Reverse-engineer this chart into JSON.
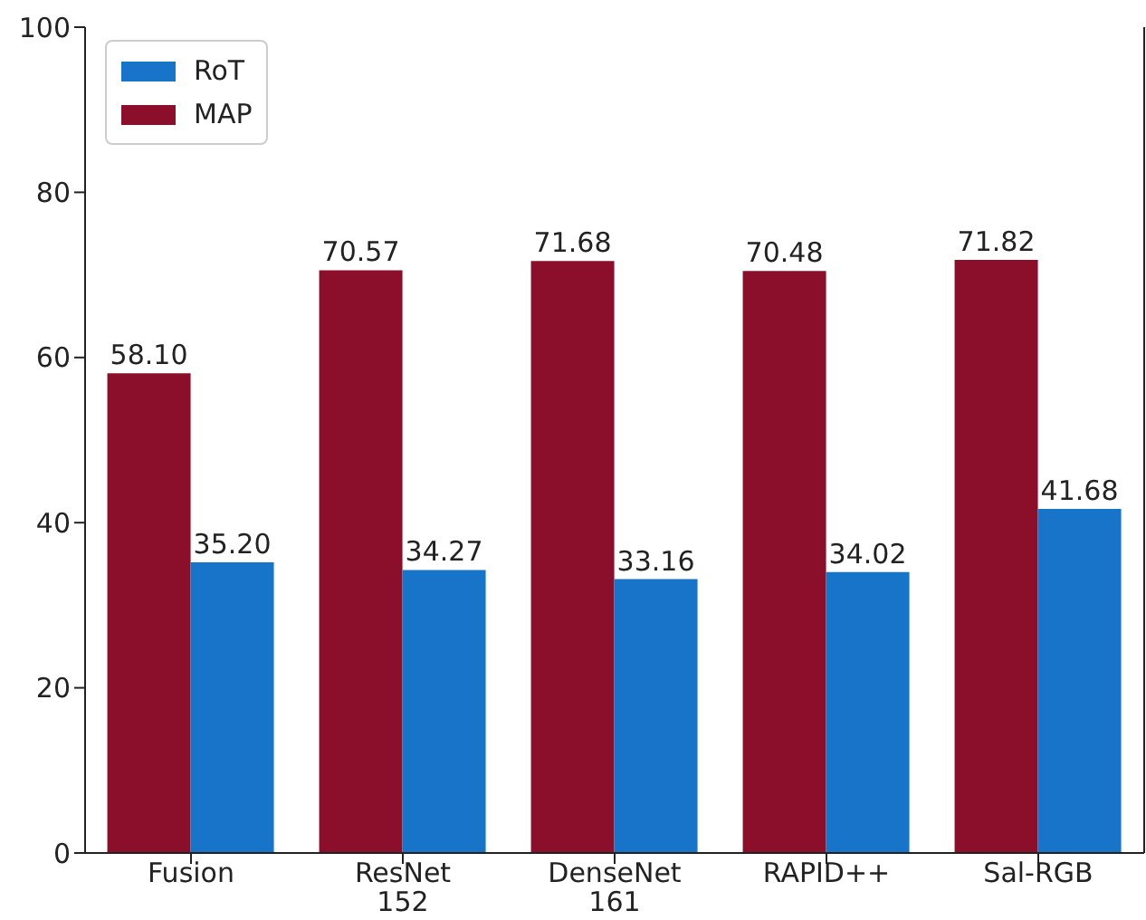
{
  "chart_data": {
    "type": "bar",
    "categories": [
      "Fusion",
      "ResNet 152",
      "DenseNet 161",
      "RAPID++",
      "Sal-RGB"
    ],
    "series": [
      {
        "name": "RoT",
        "color": "#1874c8",
        "values": [
          35.2,
          34.27,
          33.16,
          34.02,
          41.68
        ],
        "value_labels": [
          "35.20",
          "34.27",
          "33.16",
          "34.02",
          "41.68"
        ]
      },
      {
        "name": "MAP",
        "color": "#8b0e2b",
        "values": [
          58.1,
          70.57,
          71.68,
          70.48,
          71.82
        ],
        "value_labels": [
          "58.10",
          "70.57",
          "71.68",
          "70.48",
          "71.82"
        ]
      }
    ],
    "ylim": [
      0,
      100
    ],
    "yticks": [
      0,
      20,
      40,
      60,
      80,
      100
    ],
    "grid": false,
    "legend": "top left"
  }
}
